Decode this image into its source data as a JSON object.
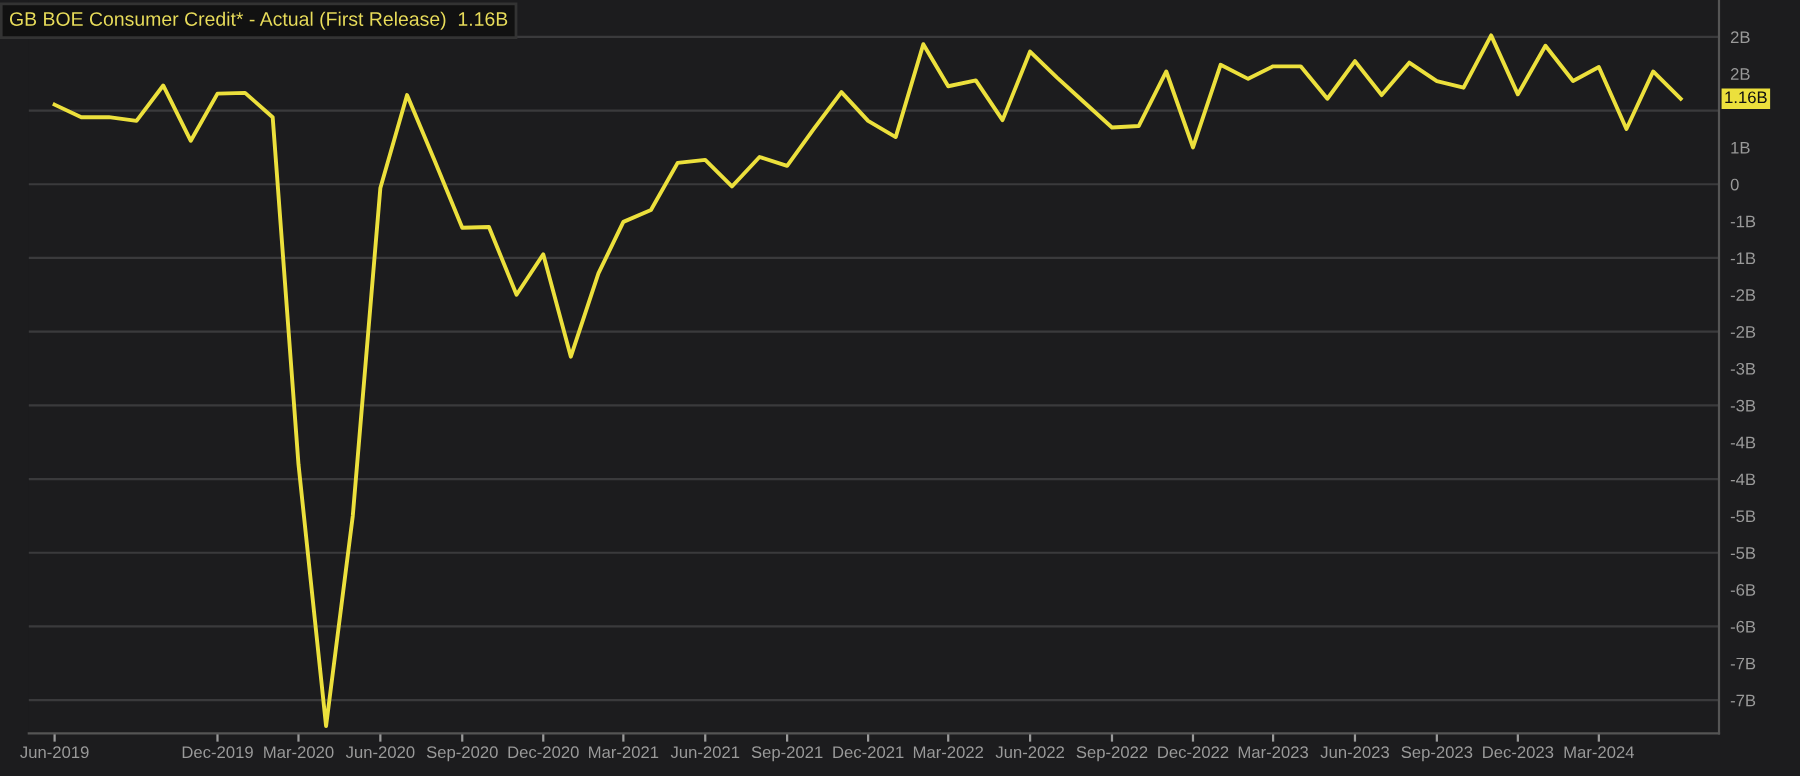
{
  "chart_data": {
    "type": "line",
    "title": "GB BOE Consumer Credit* - Actual (First Release)  1.16B",
    "x": [
      "2019-06",
      "2019-07",
      "2019-08",
      "2019-09",
      "2019-10",
      "2019-11",
      "2019-12",
      "2020-01",
      "2020-02",
      "2020-03",
      "2020-04",
      "2020-05",
      "2020-06",
      "2020-07",
      "2020-08",
      "2020-09",
      "2020-10",
      "2020-11",
      "2020-12",
      "2021-01",
      "2021-02",
      "2021-03",
      "2021-04",
      "2021-05",
      "2021-06",
      "2021-07",
      "2021-08",
      "2021-09",
      "2021-10",
      "2021-11",
      "2021-12",
      "2022-01",
      "2022-02",
      "2022-03",
      "2022-04",
      "2022-05",
      "2022-06",
      "2022-07",
      "2022-08",
      "2022-09",
      "2022-10",
      "2022-11",
      "2022-12",
      "2023-01",
      "2023-02",
      "2023-03",
      "2023-04",
      "2023-05",
      "2023-06",
      "2023-07",
      "2023-08",
      "2023-09",
      "2023-10",
      "2023-11",
      "2023-12",
      "2024-01",
      "2024-02",
      "2024-03",
      "2024-04",
      "2024-05",
      "2024-06"
    ],
    "series": [
      {
        "color": "#ece03c",
        "values": [
          1.08,
          0.91,
          0.91,
          0.86,
          1.34,
          0.59,
          1.23,
          1.24,
          0.91,
          -3.8,
          -7.35,
          -4.5,
          -0.05,
          1.21,
          0.32,
          -0.59,
          -0.58,
          -1.5,
          -0.95,
          -2.34,
          -1.21,
          -0.51,
          -0.35,
          0.29,
          0.33,
          -0.03,
          0.37,
          0.25,
          0.75,
          1.25,
          0.86,
          0.64,
          1.9,
          1.33,
          1.41,
          0.87,
          1.8,
          1.45,
          1.11,
          0.77,
          0.79,
          1.53,
          0.5,
          1.62,
          1.43,
          1.6,
          1.6,
          1.16,
          1.67,
          1.21,
          1.65,
          1.4,
          1.31,
          2.02,
          1.22,
          1.88,
          1.4,
          1.59,
          0.75,
          1.53,
          1.16
        ]
      }
    ],
    "xlim": [
      "2019-05-03",
      "2024-07-14"
    ],
    "xticks": [
      {
        "value": "2019-06",
        "label": "Jun-2019"
      },
      {
        "value": "2019-12",
        "label": "Dec-2019"
      },
      {
        "value": "2020-03",
        "label": "Mar-2020"
      },
      {
        "value": "2020-06",
        "label": "Jun-2020"
      },
      {
        "value": "2020-09",
        "label": "Sep-2020"
      },
      {
        "value": "2020-12",
        "label": "Dec-2020"
      },
      {
        "value": "2021-03",
        "label": "Mar-2021"
      },
      {
        "value": "2021-06",
        "label": "Jun-2021"
      },
      {
        "value": "2021-09",
        "label": "Sep-2021"
      },
      {
        "value": "2021-12",
        "label": "Dec-2021"
      },
      {
        "value": "2022-03",
        "label": "Mar-2022"
      },
      {
        "value": "2022-06",
        "label": "Jun-2022"
      },
      {
        "value": "2022-09",
        "label": "Sep-2022"
      },
      {
        "value": "2022-12",
        "label": "Dec-2022"
      },
      {
        "value": "2023-03",
        "label": "Mar-2023"
      },
      {
        "value": "2023-06",
        "label": "Jun-2023"
      },
      {
        "value": "2023-09",
        "label": "Sep-2023"
      },
      {
        "value": "2023-12",
        "label": "Dec-2023"
      },
      {
        "value": "2024-03",
        "label": "Mar-2024"
      }
    ],
    "ylim": [
      -7.45,
      2.5
    ],
    "yticks": [
      {
        "value": 2,
        "label": "2B"
      },
      {
        "value": 1.5,
        "label": "2B"
      },
      {
        "value": 1,
        "label": null
      },
      {
        "value": 0.5,
        "label": "1B"
      },
      0,
      {
        "value": -0.5,
        "label": "-1B"
      },
      {
        "value": -1,
        "label": "-1B"
      },
      {
        "value": -1.5,
        "label": "-2B"
      },
      {
        "value": -2,
        "label": "-2B"
      },
      {
        "value": -2.5,
        "label": "-3B"
      },
      {
        "value": -3,
        "label": "-3B"
      },
      {
        "value": -3.5,
        "label": "-4B"
      },
      {
        "value": -4,
        "label": "-4B"
      },
      {
        "value": -4.5,
        "label": "-5B"
      },
      {
        "value": -5,
        "label": "-5B"
      },
      {
        "value": -5.5,
        "label": "-6B"
      },
      {
        "value": -6,
        "label": "-6B"
      },
      {
        "value": -6.5,
        "label": "-7B"
      },
      {
        "value": -7,
        "label": "-7B"
      }
    ],
    "annotations": [
      {
        "text": "1.16B",
        "x": "2024-06",
        "y": 1.16
      }
    ],
    "grid": "y",
    "marker": "none",
    "line_style": "solid"
  }
}
